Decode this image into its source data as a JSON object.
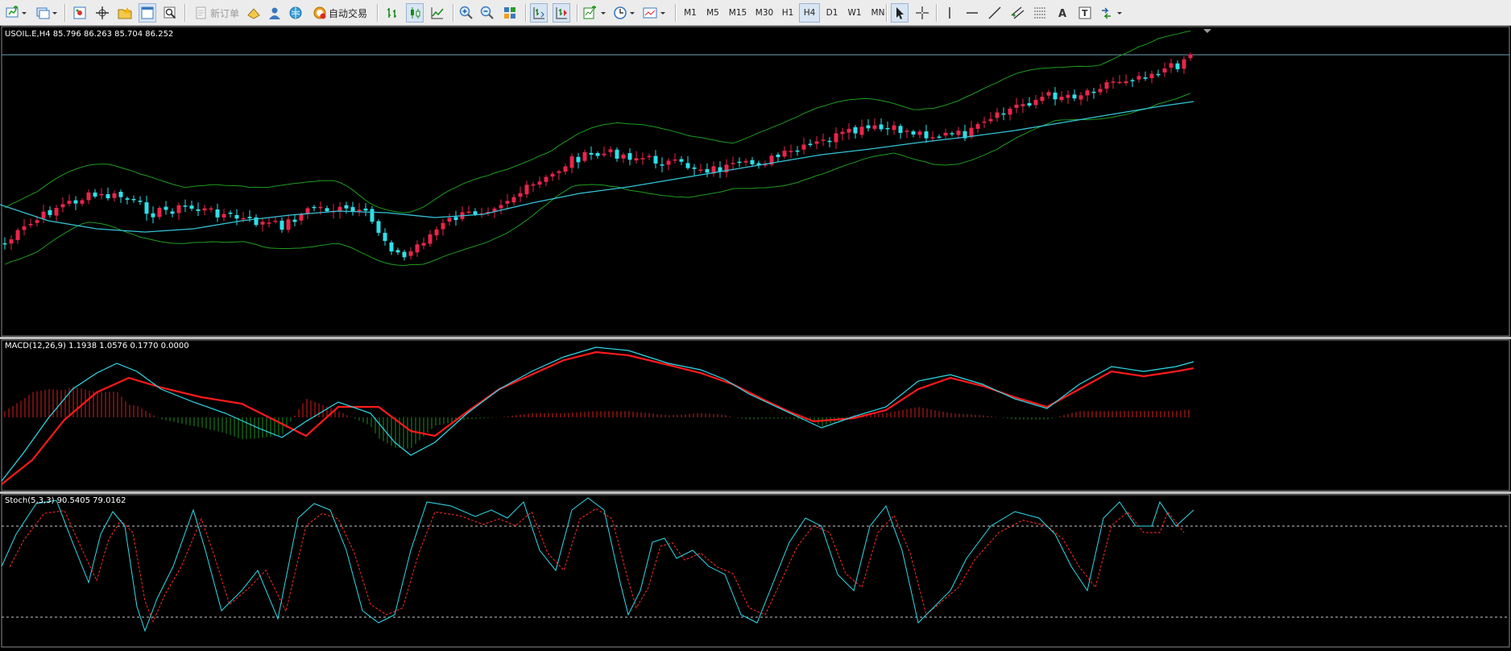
{
  "toolbar": {
    "new_order_label": "新订单",
    "auto_trade_label": "自动交易",
    "timeframes": [
      "M1",
      "M5",
      "M15",
      "M30",
      "H1",
      "H4",
      "D1",
      "W1",
      "MN"
    ],
    "active_timeframe": "H4"
  },
  "main_chart": {
    "info": "USOIL.E,H4  85.796 86.263 85.704 86.252",
    "symbol": "USOIL.E",
    "timeframe": "H4",
    "open": 85.796,
    "high": 86.263,
    "low": 85.704,
    "close": 86.252,
    "colors": {
      "bull": "#e8254b",
      "bear": "#2fe0ea",
      "bands": "#1f9d1f",
      "ma": "#34c4d8",
      "price_line": "#6aa3b8"
    }
  },
  "macd": {
    "info": "MACD(12,26,9) 1.1938 1.0576 0.1770 0.0000",
    "params": "12,26,9",
    "values": [
      1.1938,
      1.0576,
      0.177,
      0.0
    ],
    "colors": {
      "hist_up": "#d81e1e",
      "hist_down": "#1d8f1d",
      "macd": "#2fdbea",
      "signal": "#ff1a1a"
    }
  },
  "stoch": {
    "info": "Stoch(5,3,3) 90.5405 79.0162",
    "params": "5,3,3",
    "values": [
      90.5405,
      79.0162
    ],
    "colors": {
      "main": "#2fdbea",
      "signal": "#ff2a2a",
      "levels": "#c8c8c8"
    }
  }
}
